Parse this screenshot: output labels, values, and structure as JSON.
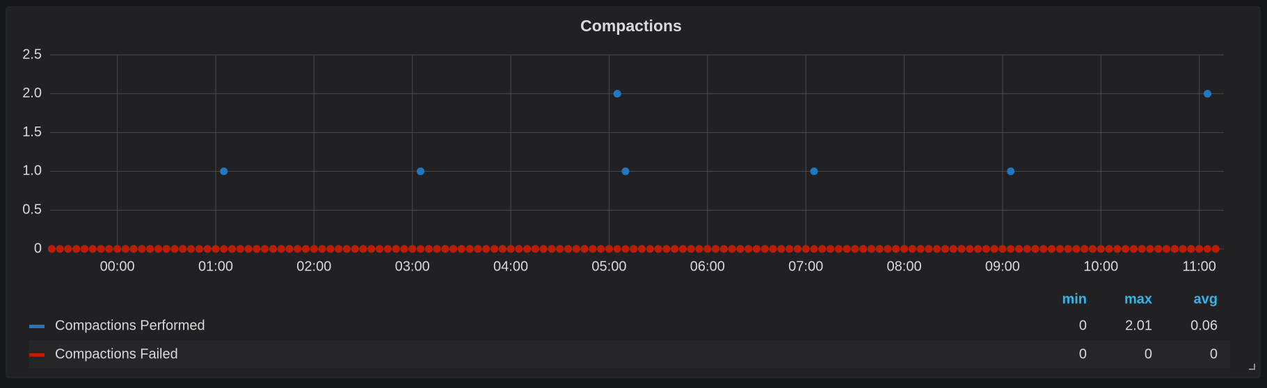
{
  "chart_data": {
    "type": "scatter",
    "title": "Compactions",
    "x": [
      -40,
      -35,
      -30,
      -25,
      -20,
      -15,
      -10,
      -5,
      0,
      5,
      10,
      15,
      20,
      25,
      30,
      35,
      40,
      45,
      50,
      55,
      60,
      65,
      70,
      75,
      80,
      85,
      90,
      95,
      100,
      105,
      110,
      115,
      120,
      125,
      130,
      135,
      140,
      145,
      150,
      155,
      160,
      165,
      170,
      175,
      180,
      185,
      190,
      195,
      200,
      205,
      210,
      215,
      220,
      225,
      230,
      235,
      240,
      245,
      250,
      255,
      260,
      265,
      270,
      275,
      280,
      285,
      290,
      295,
      300,
      305,
      310,
      315,
      320,
      325,
      330,
      335,
      340,
      345,
      350,
      355,
      360,
      365,
      370,
      375,
      380,
      385,
      390,
      395,
      400,
      405,
      410,
      415,
      420,
      425,
      430,
      435,
      440,
      445,
      450,
      455,
      460,
      465,
      470,
      475,
      480,
      485,
      490,
      495,
      500,
      505,
      510,
      515,
      520,
      525,
      530,
      535,
      540,
      545,
      550,
      555,
      560,
      565,
      570,
      575,
      580,
      585,
      590,
      595,
      600,
      605,
      610,
      615,
      620,
      625,
      630,
      635,
      640,
      645,
      650,
      655,
      660,
      665,
      670
    ],
    "series": [
      {
        "name": "Compactions Performed",
        "color": "#1f78c1",
        "legend_values": [
          0,
          2.01,
          0.06
        ],
        "values": [
          0,
          0,
          0,
          0,
          0,
          0,
          0,
          0,
          0,
          0,
          0,
          0,
          0,
          0,
          0,
          0,
          0,
          0,
          0,
          0,
          0,
          1,
          0,
          0,
          0,
          0,
          0,
          0,
          0,
          0,
          0,
          0,
          0,
          0,
          0,
          0,
          0,
          0,
          0,
          0,
          0,
          0,
          0,
          0,
          0,
          1,
          0,
          0,
          0,
          0,
          0,
          0,
          0,
          0,
          0,
          0,
          0,
          0,
          0,
          0,
          0,
          0,
          0,
          0,
          0,
          0,
          0,
          0,
          0,
          2,
          1,
          0,
          0,
          0,
          0,
          0,
          0,
          0,
          0,
          0,
          0,
          0,
          0,
          0,
          0,
          0,
          0,
          0,
          0,
          0,
          0,
          0,
          0,
          1,
          0,
          0,
          0,
          0,
          0,
          0,
          0,
          0,
          0,
          0,
          0,
          0,
          0,
          0,
          0,
          0,
          0,
          0,
          0,
          0,
          0,
          0,
          0,
          1,
          0,
          0,
          0,
          0,
          0,
          0,
          0,
          0,
          0,
          0,
          0,
          0,
          0,
          0,
          0,
          0,
          0,
          0,
          0,
          0,
          0,
          0,
          0,
          2,
          0
        ]
      },
      {
        "name": "Compactions Failed",
        "color": "#bf1b00",
        "legend_values": [
          0,
          0,
          0
        ],
        "values": [
          0,
          0,
          0,
          0,
          0,
          0,
          0,
          0,
          0,
          0,
          0,
          0,
          0,
          0,
          0,
          0,
          0,
          0,
          0,
          0,
          0,
          0,
          0,
          0,
          0,
          0,
          0,
          0,
          0,
          0,
          0,
          0,
          0,
          0,
          0,
          0,
          0,
          0,
          0,
          0,
          0,
          0,
          0,
          0,
          0,
          0,
          0,
          0,
          0,
          0,
          0,
          0,
          0,
          0,
          0,
          0,
          0,
          0,
          0,
          0,
          0,
          0,
          0,
          0,
          0,
          0,
          0,
          0,
          0,
          0,
          0,
          0,
          0,
          0,
          0,
          0,
          0,
          0,
          0,
          0,
          0,
          0,
          0,
          0,
          0,
          0,
          0,
          0,
          0,
          0,
          0,
          0,
          0,
          0,
          0,
          0,
          0,
          0,
          0,
          0,
          0,
          0,
          0,
          0,
          0,
          0,
          0,
          0,
          0,
          0,
          0,
          0,
          0,
          0,
          0,
          0,
          0,
          0,
          0,
          0,
          0,
          0,
          0,
          0,
          0,
          0,
          0,
          0,
          0,
          0,
          0,
          0,
          0,
          0,
          0,
          0,
          0,
          0,
          0,
          0,
          0,
          0,
          0
        ]
      }
    ],
    "legend_columns": [
      "min",
      "max",
      "avg"
    ],
    "xlim": [
      -41,
      675
    ],
    "xticks": [
      {
        "value": 0,
        "label": "00:00"
      },
      {
        "value": 60,
        "label": "01:00"
      },
      {
        "value": 120,
        "label": "02:00"
      },
      {
        "value": 180,
        "label": "03:00"
      },
      {
        "value": 240,
        "label": "04:00"
      },
      {
        "value": 300,
        "label": "05:00"
      },
      {
        "value": 360,
        "label": "06:00"
      },
      {
        "value": 420,
        "label": "07:00"
      },
      {
        "value": 480,
        "label": "08:00"
      },
      {
        "value": 540,
        "label": "09:00"
      },
      {
        "value": 600,
        "label": "10:00"
      },
      {
        "value": 660,
        "label": "11:00"
      }
    ],
    "ylim": [
      0,
      2.5
    ],
    "yticks": [
      0,
      0.5,
      {
        "value": 1,
        "label": "1.0"
      },
      1.5,
      {
        "value": 2,
        "label": "2.0"
      },
      2.5
    ],
    "grid": true
  }
}
